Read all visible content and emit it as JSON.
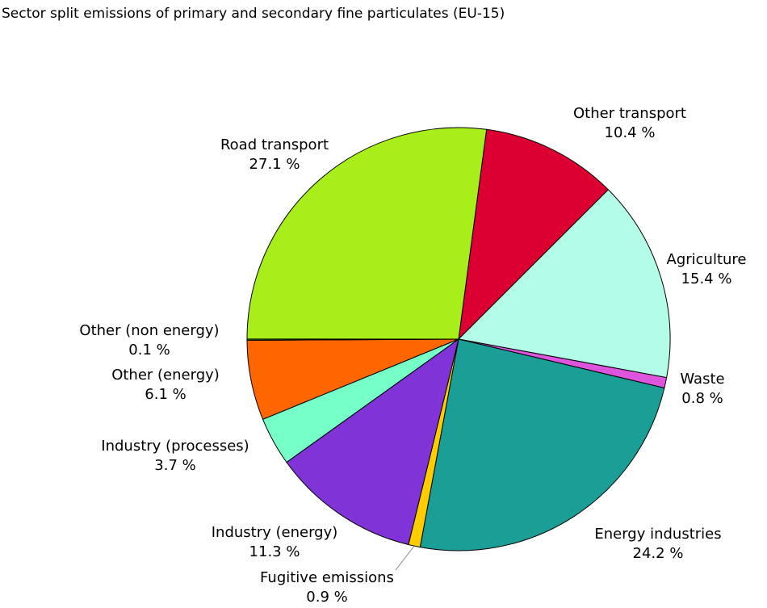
{
  "chart_data": {
    "type": "pie",
    "title": "Sector split emissions of primary and secondary fine particulates (EU-15)",
    "categories": [
      "Other transport",
      "Agriculture",
      "Waste",
      "Energy industries",
      "Fugitive emissions",
      "Industry (energy)",
      "Industry (processes)",
      "Other (energy)",
      "Other (non energy)",
      "Road transport"
    ],
    "values": [
      10.4,
      15.4,
      0.8,
      24.2,
      0.9,
      11.3,
      3.7,
      6.1,
      0.1,
      27.1
    ],
    "value_labels": [
      "10.4 %",
      "15.4 %",
      "0.8 %",
      "24.2 %",
      "0.9 %",
      "11.3 %",
      "3.7 %",
      "6.1 %",
      "0.1 %",
      "27.1 %"
    ],
    "colors": [
      "#dc0032",
      "#b3fce8",
      "#dd55dd",
      "#1a9e96",
      "#ffcc00",
      "#8033d6",
      "#77ffc8",
      "#ff6600",
      "#2e8b2e",
      "#a8ee1a"
    ]
  }
}
